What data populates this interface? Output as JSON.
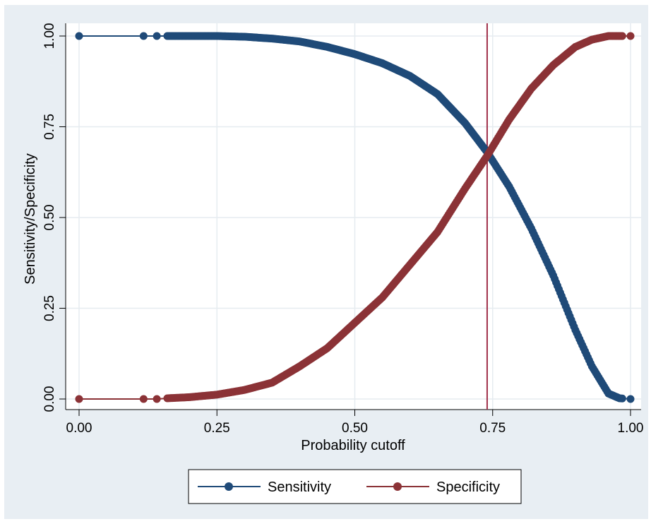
{
  "chart_data": {
    "type": "line",
    "xlabel": "Probability cutoff",
    "ylabel": "Sensitivity/Specificity",
    "xlim": [
      0,
      1
    ],
    "ylim": [
      0,
      1
    ],
    "xticks": [
      "0.00",
      "0.25",
      "0.50",
      "0.75",
      "1.00"
    ],
    "yticks": [
      "0.00",
      "0.25",
      "0.50",
      "0.75",
      "1.00"
    ],
    "grid": true,
    "legend_position": "bottom",
    "reference_line": {
      "axis": "x",
      "value": 0.74,
      "color": "#a0304a"
    },
    "colors": {
      "Sensitivity": "#1f4a78",
      "Specificity": "#8b3236"
    },
    "series": [
      {
        "name": "Sensitivity",
        "x": [
          0.0,
          0.117,
          0.141,
          0.16,
          0.2,
          0.25,
          0.3,
          0.35,
          0.4,
          0.45,
          0.5,
          0.55,
          0.6,
          0.65,
          0.7,
          0.74,
          0.78,
          0.82,
          0.86,
          0.9,
          0.93,
          0.96,
          0.98,
          1.0
        ],
        "y": [
          1.0,
          1.0,
          1.0,
          1.0,
          1.0,
          1.0,
          0.998,
          0.993,
          0.985,
          0.97,
          0.95,
          0.925,
          0.89,
          0.84,
          0.76,
          0.68,
          0.585,
          0.47,
          0.34,
          0.19,
          0.09,
          0.015,
          0.002,
          0.0
        ]
      },
      {
        "name": "Specificity",
        "x": [
          0.0,
          0.117,
          0.141,
          0.16,
          0.2,
          0.25,
          0.3,
          0.35,
          0.4,
          0.45,
          0.5,
          0.55,
          0.6,
          0.65,
          0.7,
          0.74,
          0.78,
          0.82,
          0.86,
          0.9,
          0.93,
          0.96,
          0.98,
          1.0
        ],
        "y": [
          0.0,
          0.0,
          0.0,
          0.002,
          0.005,
          0.012,
          0.025,
          0.045,
          0.09,
          0.14,
          0.21,
          0.28,
          0.37,
          0.46,
          0.58,
          0.67,
          0.77,
          0.855,
          0.92,
          0.97,
          0.99,
          1.0,
          1.0,
          1.0
        ]
      }
    ]
  }
}
